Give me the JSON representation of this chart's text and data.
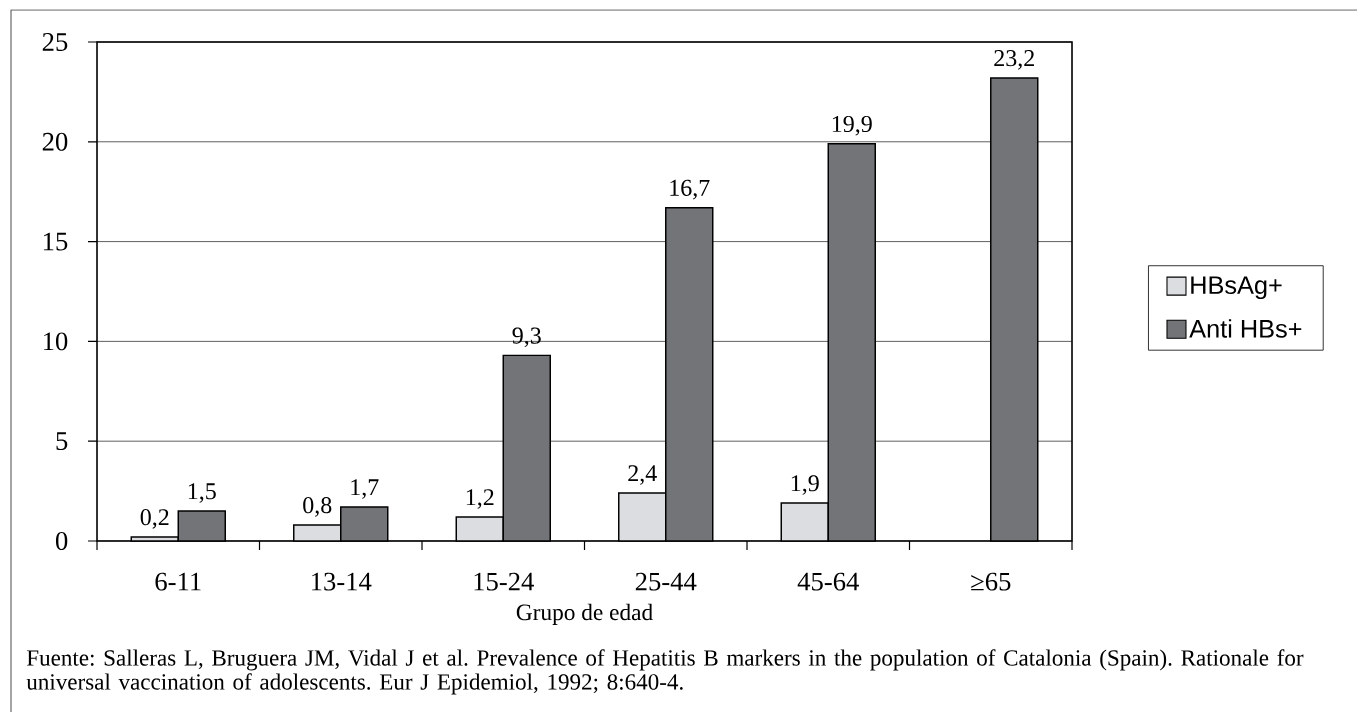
{
  "chart_data": {
    "type": "bar",
    "xlabel": "Grupo de edad",
    "categories": [
      "6-11",
      "13-14",
      "15-24",
      "25-44",
      "45-64",
      "≥65"
    ],
    "series": [
      {
        "name": "HBsAg+",
        "color": "#dcdde0",
        "values": [
          0.2,
          0.8,
          1.2,
          2.4,
          1.9,
          null
        ],
        "value_labels": [
          "0,2",
          "0,8",
          "1,2",
          "2,4",
          "1,9",
          null
        ]
      },
      {
        "name": "Anti HBs+",
        "color": "#737478",
        "values": [
          1.5,
          1.7,
          9.3,
          16.7,
          19.9,
          23.2
        ],
        "value_labels": [
          "1,5",
          "1,7",
          "9,3",
          "16,7",
          "19,9",
          "23,2"
        ]
      }
    ],
    "ylim": [
      0,
      25
    ],
    "yticks": [
      0,
      5,
      10,
      15,
      20,
      25
    ],
    "grid": "y",
    "legend": "right",
    "annotations": [
      "Fuente: Salleras L, Bruguera JM, Vidal J et al. Prevalence of Hepatitis B markers in the population of Catalonia (Spain). Rationale for universal vaccination of adolescents. Eur J Epidemiol, 1992; 8:640-4."
    ]
  }
}
